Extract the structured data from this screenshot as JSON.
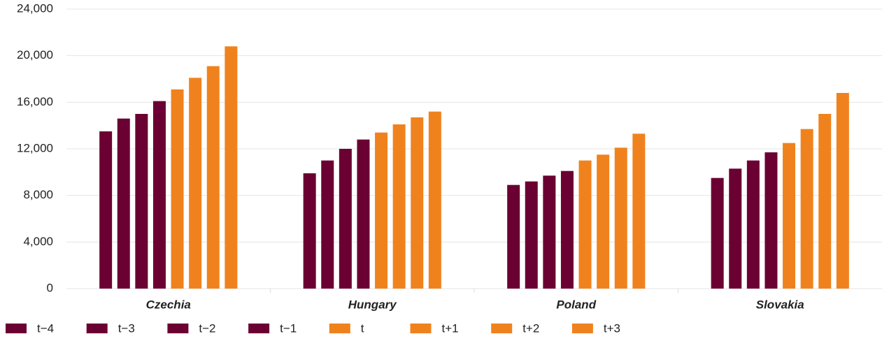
{
  "chart_data": {
    "type": "bar",
    "categories": [
      "Czechia",
      "Hungary",
      "Poland",
      "Slovakia"
    ],
    "series": [
      {
        "name": "t−4",
        "color": "#6b0032",
        "values": [
          13500,
          9900,
          8900,
          9500
        ]
      },
      {
        "name": "t−3",
        "color": "#6b0032",
        "values": [
          14600,
          11000,
          9200,
          10300
        ]
      },
      {
        "name": "t−2",
        "color": "#6b0032",
        "values": [
          15000,
          12000,
          9700,
          11000
        ]
      },
      {
        "name": "t−1",
        "color": "#6b0032",
        "values": [
          16100,
          12800,
          10100,
          11700
        ]
      },
      {
        "name": "t",
        "color": "#f0821e",
        "values": [
          17100,
          13400,
          11000,
          12500
        ]
      },
      {
        "name": "t+1",
        "color": "#f0821e",
        "values": [
          18100,
          14100,
          11500,
          13700
        ]
      },
      {
        "name": "t+2",
        "color": "#f0821e",
        "values": [
          19100,
          14700,
          12100,
          15000
        ]
      },
      {
        "name": "t+3",
        "color": "#f0821e",
        "values": [
          20800,
          15200,
          13300,
          16800
        ]
      }
    ],
    "ylim": [
      0,
      24000
    ],
    "yticks": [
      0,
      {
        "value": 4000,
        "label": "4,000"
      },
      {
        "value": 8000,
        "label": "8,000"
      },
      {
        "value": 12000,
        "label": "12,000"
      },
      {
        "value": 16000,
        "label": "16,000"
      },
      {
        "value": 20000,
        "label": "20,000"
      },
      {
        "value": 24000,
        "label": "24,000"
      }
    ],
    "grid": true,
    "legend": "bottom"
  }
}
